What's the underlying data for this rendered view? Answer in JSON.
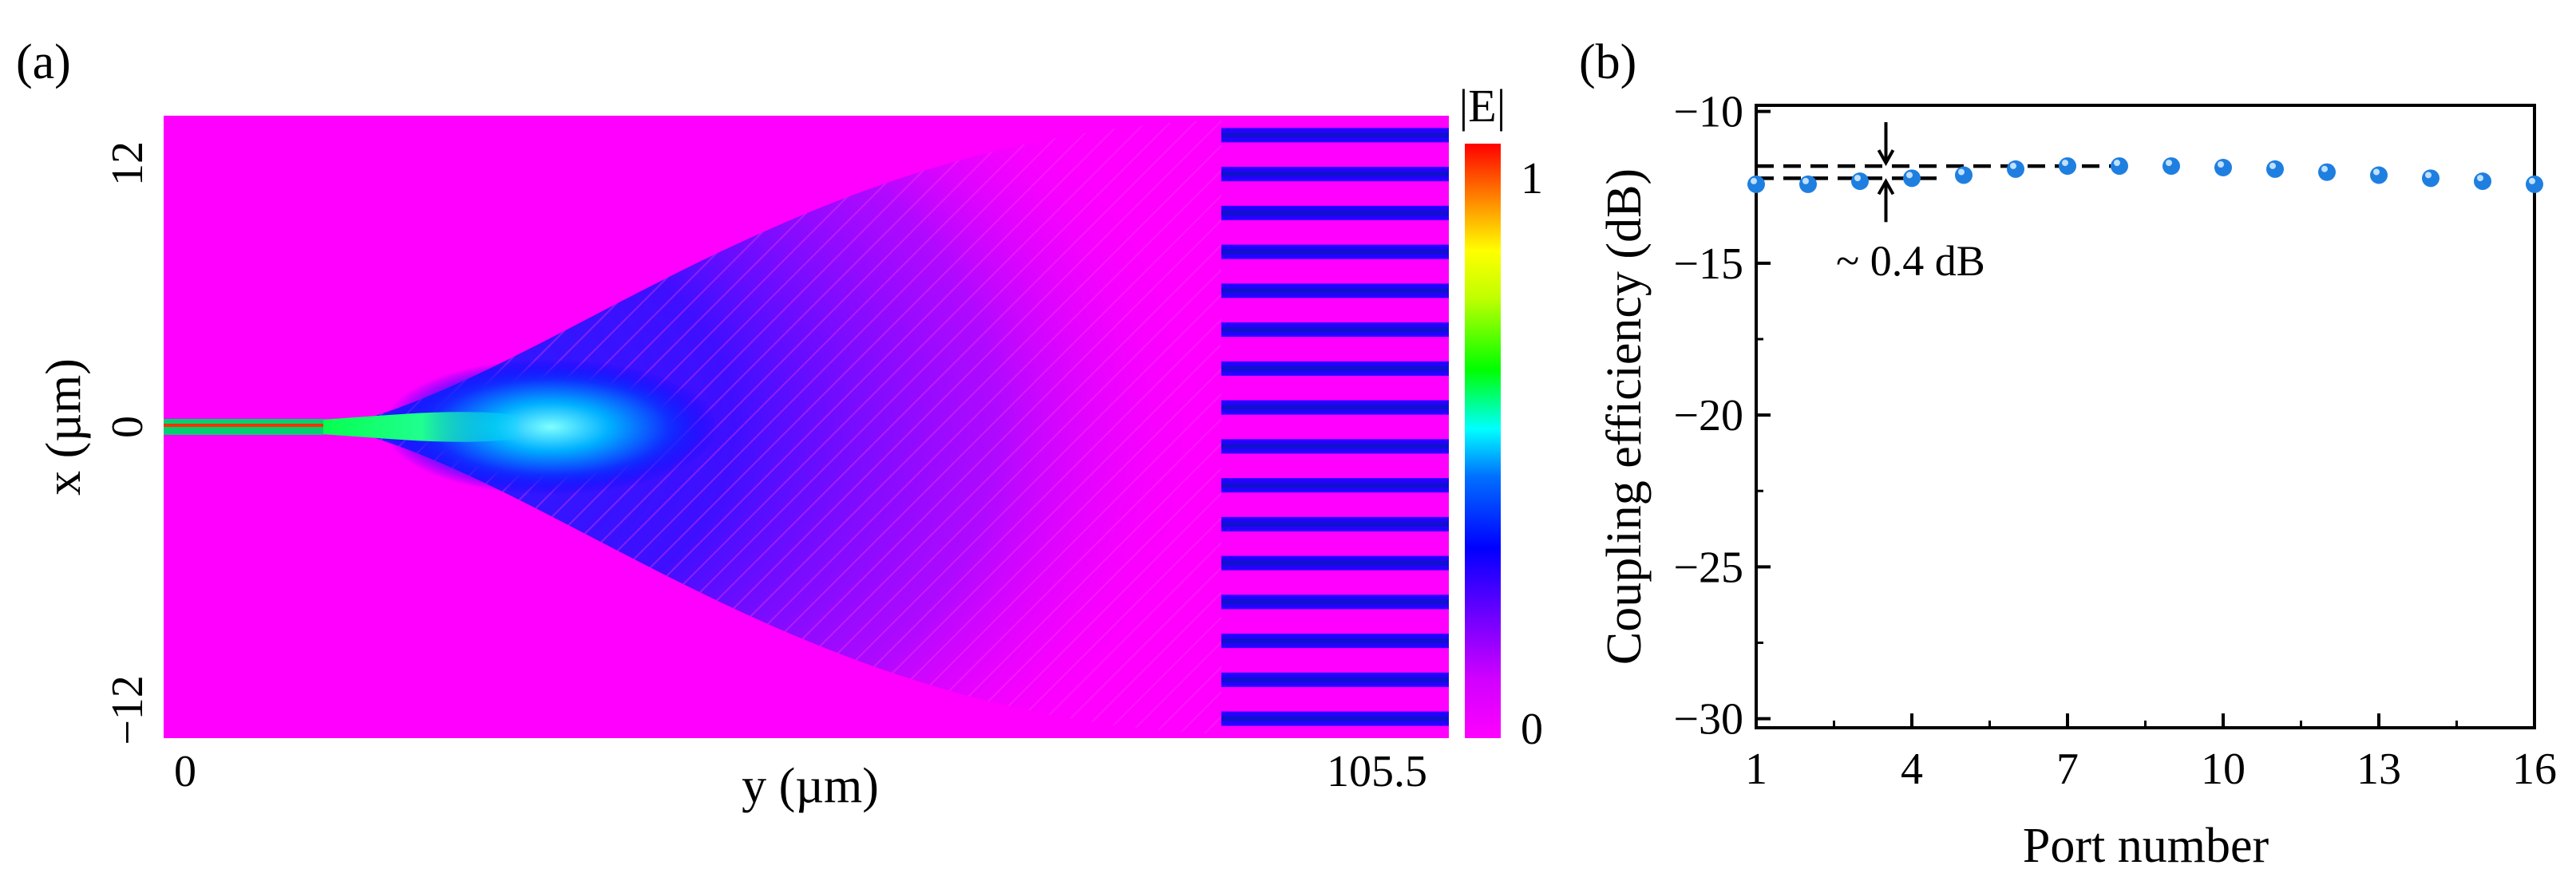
{
  "figure": {
    "panel_a": {
      "label": "(a)",
      "xlabel": "y (µm)",
      "ylabel": "x (µm)",
      "x_ticks": [
        "0",
        "105.5"
      ],
      "y_ticks": [
        "12",
        "0",
        "−12"
      ],
      "x_range": [
        0,
        105.5
      ],
      "y_range": [
        -12.8,
        12.8
      ],
      "colorbar": {
        "title": "|E|",
        "min_label": "0",
        "max_label": "1",
        "min": 0,
        "max": 1
      },
      "output_ports": 16,
      "colors": {
        "background": "#ff00ff",
        "beam": "#0000ff",
        "core": "#00ff00",
        "peak": "#ff0000"
      }
    },
    "panel_b": {
      "label": "(b)",
      "annotation": "~ 0.4 dB"
    }
  },
  "chart_data": [
    {
      "type": "heatmap",
      "title": "",
      "xlabel": "y (µm)",
      "ylabel": "x (µm)",
      "xlim": [
        0,
        105.5
      ],
      "ylim": [
        -12,
        12
      ],
      "colorscale_label": "|E|",
      "colorscale_range": [
        0,
        1
      ],
      "output_ports": 16
    },
    {
      "type": "scatter",
      "title": "",
      "xlabel": "Port number",
      "ylabel": "Coupling efficiency (dB)",
      "xlim": [
        1,
        16
      ],
      "ylim": [
        -30.3,
        -9.8
      ],
      "x_ticks": [
        1,
        4,
        7,
        10,
        13,
        16
      ],
      "y_ticks": [
        -10,
        -15,
        -20,
        -25,
        -30
      ],
      "x_tick_labels": [
        "1",
        "4",
        "7",
        "10",
        "13",
        "16"
      ],
      "y_tick_labels": [
        "−10",
        "−15",
        "−20",
        "−25",
        "−30"
      ],
      "x": [
        1,
        2,
        3,
        4,
        5,
        6,
        7,
        8,
        9,
        10,
        11,
        12,
        13,
        14,
        15,
        16
      ],
      "y": [
        -12.4,
        -12.4,
        -12.3,
        -12.2,
        -12.1,
        -11.9,
        -11.8,
        -11.8,
        -11.8,
        -11.85,
        -11.9,
        -12.0,
        -12.1,
        -12.2,
        -12.3,
        -12.4
      ],
      "marker_color": "#1f7fe0",
      "reference_lines": [
        -11.8,
        -12.2
      ],
      "annotation": "~ 0.4 dB",
      "grid": false
    }
  ]
}
